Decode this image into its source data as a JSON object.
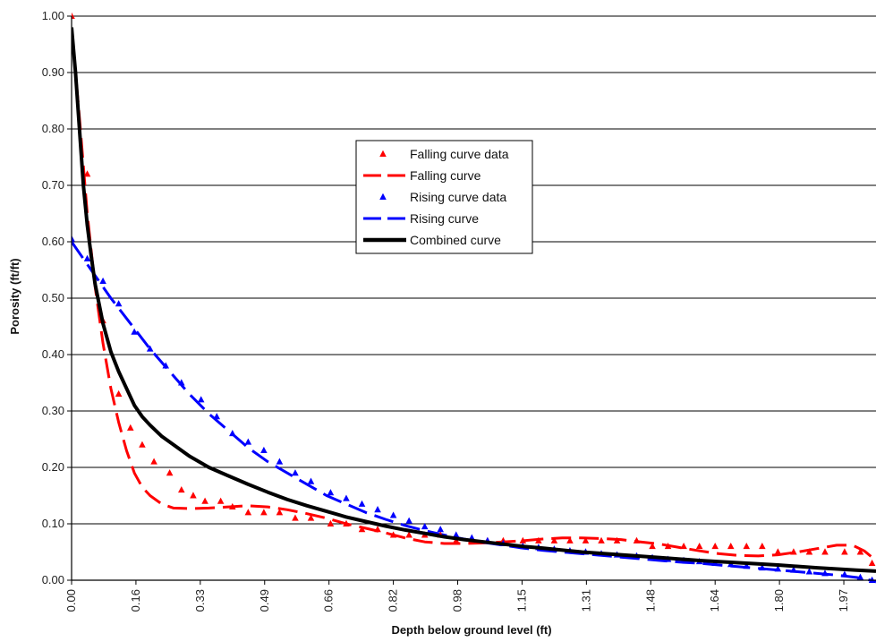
{
  "chart_data": {
    "type": "line",
    "xlabel": "Depth below ground level (ft)",
    "ylabel": "Porosity (ft/ft)",
    "xlim": [
      0,
      2.05
    ],
    "ylim": [
      0,
      1.0
    ],
    "grid": true,
    "legend_position": "center",
    "x_ticks": [
      "0.00",
      "0.16",
      "0.33",
      "0.49",
      "0.66",
      "0.82",
      "0.98",
      "1.15",
      "1.31",
      "1.48",
      "1.64",
      "1.80",
      "1.97"
    ],
    "y_ticks": [
      "0.00",
      "0.10",
      "0.20",
      "0.30",
      "0.40",
      "0.50",
      "0.60",
      "0.70",
      "0.80",
      "0.90",
      "1.00"
    ],
    "colors": {
      "falling": "#ff0000",
      "rising": "#0000ff",
      "combined": "#000000",
      "grid": "#000000"
    },
    "series": [
      {
        "name": "Falling curve data",
        "kind": "markers",
        "marker": "triangle",
        "color": "#ff0000",
        "x": [
          0.0,
          0.04,
          0.08,
          0.12,
          0.15,
          0.18,
          0.21,
          0.25,
          0.28,
          0.31,
          0.34,
          0.38,
          0.41,
          0.45,
          0.49,
          0.53,
          0.57,
          0.61,
          0.66,
          0.7,
          0.74,
          0.78,
          0.82,
          0.86,
          0.9,
          0.94,
          0.98,
          1.02,
          1.06,
          1.1,
          1.15,
          1.19,
          1.23,
          1.27,
          1.31,
          1.35,
          1.39,
          1.44,
          1.48,
          1.52,
          1.56,
          1.6,
          1.64,
          1.68,
          1.72,
          1.76,
          1.8,
          1.84,
          1.88,
          1.92,
          1.97,
          2.01,
          2.04
        ],
        "y": [
          1.0,
          0.72,
          0.46,
          0.33,
          0.27,
          0.24,
          0.21,
          0.19,
          0.16,
          0.15,
          0.14,
          0.14,
          0.13,
          0.12,
          0.12,
          0.12,
          0.11,
          0.11,
          0.1,
          0.1,
          0.09,
          0.09,
          0.08,
          0.08,
          0.08,
          0.08,
          0.07,
          0.07,
          0.07,
          0.07,
          0.07,
          0.07,
          0.07,
          0.07,
          0.07,
          0.07,
          0.07,
          0.07,
          0.06,
          0.06,
          0.06,
          0.06,
          0.06,
          0.06,
          0.06,
          0.06,
          0.05,
          0.05,
          0.05,
          0.05,
          0.05,
          0.05,
          0.03
        ]
      },
      {
        "name": "Falling curve",
        "kind": "line",
        "dash": "long",
        "color": "#ff0000",
        "x": [
          0.0,
          0.02,
          0.04,
          0.06,
          0.08,
          0.1,
          0.12,
          0.14,
          0.16,
          0.18,
          0.2,
          0.23,
          0.26,
          0.3,
          0.35,
          0.4,
          0.45,
          0.5,
          0.55,
          0.6,
          0.65,
          0.7,
          0.75,
          0.8,
          0.85,
          0.9,
          0.95,
          1.0,
          1.05,
          1.1,
          1.15,
          1.2,
          1.25,
          1.3,
          1.35,
          1.4,
          1.45,
          1.5,
          1.55,
          1.6,
          1.65,
          1.7,
          1.75,
          1.8,
          1.85,
          1.9,
          1.95,
          1.99,
          2.02,
          2.05
        ],
        "y": [
          0.98,
          0.82,
          0.65,
          0.52,
          0.42,
          0.34,
          0.28,
          0.23,
          0.19,
          0.165,
          0.15,
          0.135,
          0.128,
          0.127,
          0.128,
          0.13,
          0.132,
          0.13,
          0.125,
          0.118,
          0.11,
          0.1,
          0.092,
          0.084,
          0.075,
          0.068,
          0.065,
          0.065,
          0.066,
          0.068,
          0.07,
          0.073,
          0.075,
          0.075,
          0.074,
          0.072,
          0.068,
          0.064,
          0.058,
          0.052,
          0.047,
          0.044,
          0.043,
          0.045,
          0.05,
          0.056,
          0.062,
          0.062,
          0.052,
          0.035
        ]
      },
      {
        "name": "Rising curve data",
        "kind": "markers",
        "marker": "triangle",
        "color": "#0000ff",
        "x": [
          0.0,
          0.04,
          0.08,
          0.12,
          0.16,
          0.2,
          0.24,
          0.28,
          0.33,
          0.37,
          0.41,
          0.45,
          0.49,
          0.53,
          0.57,
          0.61,
          0.66,
          0.7,
          0.74,
          0.78,
          0.82,
          0.86,
          0.9,
          0.94,
          0.98,
          1.02,
          1.06,
          1.1,
          1.15,
          1.19,
          1.23,
          1.27,
          1.31,
          1.35,
          1.39,
          1.44,
          1.48,
          1.52,
          1.56,
          1.6,
          1.64,
          1.68,
          1.72,
          1.76,
          1.8,
          1.84,
          1.88,
          1.92,
          1.97,
          2.01,
          2.04
        ],
        "y": [
          0.605,
          0.57,
          0.53,
          0.49,
          0.44,
          0.41,
          0.38,
          0.35,
          0.32,
          0.29,
          0.26,
          0.245,
          0.23,
          0.21,
          0.19,
          0.175,
          0.155,
          0.145,
          0.135,
          0.125,
          0.115,
          0.105,
          0.095,
          0.09,
          0.08,
          0.075,
          0.07,
          0.065,
          0.06,
          0.058,
          0.055,
          0.052,
          0.05,
          0.047,
          0.045,
          0.043,
          0.04,
          0.037,
          0.035,
          0.033,
          0.03,
          0.028,
          0.025,
          0.022,
          0.02,
          0.018,
          0.015,
          0.012,
          0.01,
          0.005,
          0.0
        ]
      },
      {
        "name": "Rising curve",
        "kind": "line",
        "dash": "long",
        "color": "#0000ff",
        "x": [
          0.0,
          0.05,
          0.1,
          0.15,
          0.2,
          0.25,
          0.3,
          0.35,
          0.4,
          0.45,
          0.5,
          0.55,
          0.6,
          0.65,
          0.7,
          0.75,
          0.8,
          0.85,
          0.9,
          0.95,
          1.0,
          1.05,
          1.1,
          1.15,
          1.2,
          1.25,
          1.3,
          1.35,
          1.4,
          1.45,
          1.5,
          1.55,
          1.6,
          1.65,
          1.7,
          1.75,
          1.8,
          1.85,
          1.9,
          1.95,
          2.0,
          2.03,
          2.05
        ],
        "y": [
          0.6,
          0.55,
          0.5,
          0.455,
          0.41,
          0.37,
          0.33,
          0.295,
          0.265,
          0.235,
          0.21,
          0.19,
          0.17,
          0.15,
          0.135,
          0.12,
          0.108,
          0.097,
          0.088,
          0.08,
          0.073,
          0.067,
          0.062,
          0.057,
          0.053,
          0.05,
          0.047,
          0.044,
          0.041,
          0.038,
          0.035,
          0.032,
          0.03,
          0.027,
          0.024,
          0.021,
          0.018,
          0.015,
          0.012,
          0.009,
          0.005,
          0.001,
          -0.003
        ]
      },
      {
        "name": "Combined curve",
        "kind": "line",
        "dash": "solid",
        "color": "#000000",
        "x": [
          0.0,
          0.01,
          0.02,
          0.03,
          0.04,
          0.05,
          0.06,
          0.07,
          0.08,
          0.09,
          0.1,
          0.12,
          0.14,
          0.16,
          0.18,
          0.2,
          0.23,
          0.26,
          0.3,
          0.35,
          0.4,
          0.45,
          0.5,
          0.55,
          0.6,
          0.65,
          0.7,
          0.75,
          0.8,
          0.85,
          0.9,
          0.95,
          1.0,
          1.05,
          1.1,
          1.15,
          1.2,
          1.3,
          1.4,
          1.5,
          1.6,
          1.7,
          1.8,
          1.9,
          2.0,
          2.05
        ],
        "y": [
          0.98,
          0.9,
          0.8,
          0.7,
          0.63,
          0.575,
          0.525,
          0.49,
          0.455,
          0.43,
          0.405,
          0.37,
          0.34,
          0.31,
          0.29,
          0.275,
          0.255,
          0.24,
          0.22,
          0.2,
          0.185,
          0.17,
          0.156,
          0.143,
          0.132,
          0.122,
          0.112,
          0.104,
          0.096,
          0.089,
          0.083,
          0.077,
          0.072,
          0.068,
          0.064,
          0.06,
          0.057,
          0.05,
          0.045,
          0.04,
          0.035,
          0.031,
          0.027,
          0.022,
          0.018,
          0.016
        ]
      }
    ]
  }
}
